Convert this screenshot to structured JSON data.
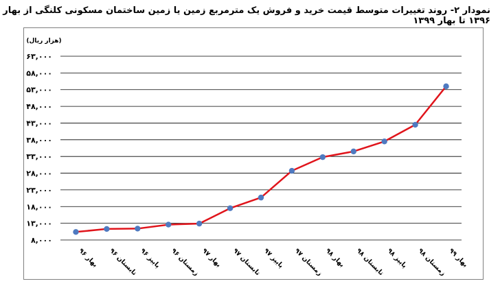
{
  "title": "نمودار ۲- روند تغییرات متوسط قیمت خرید و فروش یک مترمربع زمین یا زمین ساختمان مسکونی کلنگی از بهار ۱۳۹۶ تا بهار ۱۳۹۹",
  "chart_data": {
    "type": "line",
    "unit_label": "(هزار ریال)",
    "categories": [
      "بهار ۹۶",
      "تابستان ۹۶",
      "پاییز ۹۶",
      "زمستان ۹۶",
      "بهار ۹۷",
      "تابستان ۹۷",
      "پاییز ۹۷",
      "زمستان ۹۷",
      "بهار ۹۸",
      "تابستان ۹۸",
      "پاییز ۹۸",
      "زمستان ۹۸",
      "بهار ۹۹"
    ],
    "series": [
      {
        "values": [
          10400,
          11300,
          11400,
          12600,
          12900,
          17500,
          20700,
          28700,
          32800,
          34500,
          37500,
          42500,
          54000
        ]
      }
    ],
    "y_ticks": [
      8000,
      13000,
      18000,
      23000,
      28000,
      33000,
      38000,
      43000,
      48000,
      53000,
      58000,
      63000
    ],
    "y_tick_labels": [
      "۸,۰۰۰",
      "۱۳,۰۰۰",
      "۱۸,۰۰۰",
      "۲۳,۰۰۰",
      "۲۸,۰۰۰",
      "۳۳,۰۰۰",
      "۳۸,۰۰۰",
      "۴۳,۰۰۰",
      "۴۸,۰۰۰",
      "۵۳,۰۰۰",
      "۵۸,۰۰۰",
      "۶۳,۰۰۰"
    ],
    "ylim": [
      8000,
      63000
    ],
    "grid": true,
    "colors": {
      "line": "#e0141b",
      "marker": "#4f7ac0",
      "grid": "#000000"
    }
  }
}
